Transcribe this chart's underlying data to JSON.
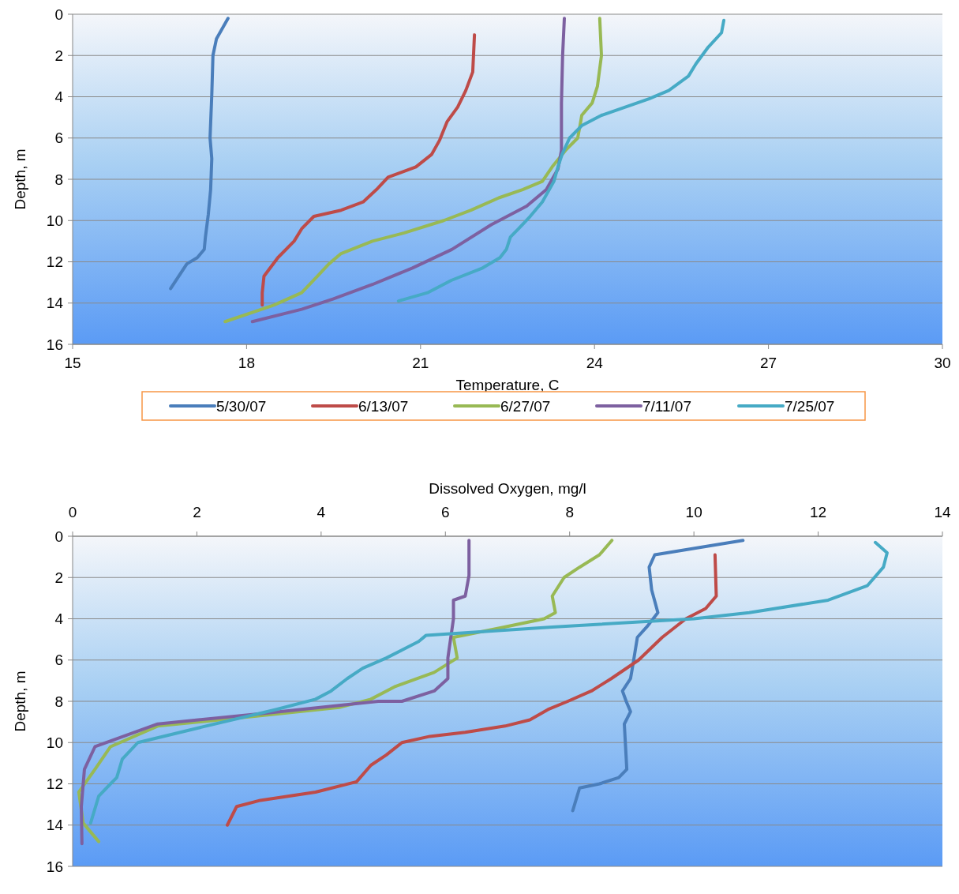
{
  "chart_data": [
    {
      "type": "line",
      "xlabel": "Temperature, C",
      "ylabel": "Depth, m",
      "xlim": [
        15,
        30
      ],
      "xticks": [
        15,
        18,
        21,
        24,
        27,
        30
      ],
      "ylim": [
        16,
        0
      ],
      "yticks": [
        0,
        2,
        4,
        6,
        8,
        10,
        12,
        14,
        16
      ],
      "grid": "y",
      "legend": "bottom",
      "series": [
        {
          "name": "5/30/07",
          "color": "#4a7ebb",
          "x": [
            17.68,
            17.48,
            17.42,
            17.4,
            17.37,
            17.4,
            17.38,
            17.34,
            17.29,
            17.27,
            17.15,
            16.97,
            16.69
          ],
          "values": [
            0.2,
            1.2,
            2,
            3.9,
            6,
            7,
            8.5,
            9.7,
            10.8,
            11.4,
            11.8,
            12.1,
            13.3
          ]
        },
        {
          "name": "6/13/07",
          "color": "#be4b48",
          "x": [
            21.93,
            21.9,
            21.78,
            21.64,
            21.46,
            21.33,
            21.19,
            20.92,
            20.44,
            20.24,
            20.01,
            19.63,
            19.16,
            18.95,
            18.82,
            18.54,
            18.3,
            18.27,
            18.27
          ],
          "values": [
            1,
            2.8,
            3.7,
            4.5,
            5.2,
            6.1,
            6.8,
            7.4,
            7.9,
            8.5,
            9.1,
            9.5,
            9.8,
            10.4,
            11,
            11.8,
            12.7,
            13.5,
            14.1
          ]
        },
        {
          "name": "6/27/07",
          "color": "#98b954",
          "x": [
            24.09,
            24.12,
            24.05,
            23.96,
            23.78,
            23.75,
            23.71,
            23.5,
            23.27,
            23.1,
            22.76,
            22.35,
            21.87,
            21.4,
            20.72,
            20.17,
            19.63,
            19.42,
            19.22,
            18.95,
            18.47,
            17.63
          ],
          "values": [
            0.2,
            2,
            3.5,
            4.3,
            4.9,
            5.4,
            6,
            6.6,
            7.4,
            8.1,
            8.5,
            8.9,
            9.5,
            10,
            10.6,
            11,
            11.6,
            12.1,
            12.7,
            13.5,
            14.1,
            14.9
          ]
        },
        {
          "name": "7/11/07",
          "color": "#7d60a0",
          "x": [
            23.48,
            23.45,
            23.43,
            23.43,
            23.37,
            23.17,
            22.83,
            22.22,
            21.54,
            20.86,
            20.17,
            19.49,
            18.95,
            18.1
          ],
          "values": [
            0.2,
            2,
            4.3,
            6.6,
            7.5,
            8.5,
            9.3,
            10.2,
            11.4,
            12.3,
            13.1,
            13.8,
            14.3,
            14.9
          ]
        },
        {
          "name": "7/25/07",
          "color": "#46aac5",
          "x": [
            26.23,
            26.19,
            25.96,
            25.75,
            25.62,
            25.28,
            24.94,
            24.53,
            24.12,
            23.78,
            23.57,
            23.44,
            23.37,
            23.3,
            23.1,
            22.89,
            22.69,
            22.55,
            22.48,
            22.37,
            22.07,
            21.53,
            21.12,
            20.62
          ],
          "values": [
            0.3,
            0.9,
            1.6,
            2.4,
            3,
            3.7,
            4.1,
            4.5,
            4.9,
            5.4,
            6,
            6.8,
            7.4,
            8.1,
            9.1,
            9.8,
            10.4,
            10.8,
            11.4,
            11.8,
            12.3,
            12.9,
            13.5,
            13.9
          ]
        }
      ]
    },
    {
      "type": "line",
      "xlabel": "Dissolved Oxygen, mg/l",
      "ylabel": "Depth, m",
      "xlim": [
        0,
        14
      ],
      "xticks": [
        0,
        2,
        4,
        6,
        8,
        10,
        12,
        14
      ],
      "ylim": [
        16,
        0
      ],
      "yticks": [
        0,
        2,
        4,
        6,
        8,
        10,
        12,
        14,
        16
      ],
      "grid": "y",
      "series": [
        {
          "color": "#4a7ebb",
          "x": [
            10.79,
            9.37,
            9.28,
            9.32,
            9.42,
            9.24,
            9.09,
            9.02,
            8.98,
            8.85,
            8.91,
            8.98,
            8.88,
            8.9,
            8.92,
            8.79,
            8.48,
            8.16,
            8.05
          ],
          "values": [
            0.2,
            0.9,
            1.5,
            2.6,
            3.7,
            4.4,
            4.9,
            6.2,
            6.9,
            7.5,
            8,
            8.5,
            9.1,
            10.2,
            11.3,
            11.7,
            12,
            12.2,
            13.3
          ]
        },
        {
          "color": "#be4b48",
          "x": [
            10.34,
            10.36,
            10.19,
            9.87,
            9.49,
            9.11,
            8.67,
            8.35,
            7.97,
            7.65,
            7.36,
            6.96,
            6.32,
            5.75,
            5.3,
            5.05,
            4.8,
            4.57,
            3.91,
            3.02,
            2.64,
            2.49
          ],
          "values": [
            0.9,
            2.9,
            3.5,
            4,
            4.9,
            6,
            6.9,
            7.5,
            8,
            8.4,
            8.9,
            9.2,
            9.5,
            9.7,
            10,
            10.6,
            11.1,
            11.9,
            12.4,
            12.8,
            13.1,
            14
          ]
        },
        {
          "color": "#98b954",
          "x": [
            8.68,
            8.48,
            8.16,
            7.91,
            7.72,
            7.77,
            7.59,
            6.95,
            6.13,
            6.19,
            5.82,
            5.18,
            4.8,
            4.29,
            3.02,
            1.37,
            0.61,
            0.36,
            0.1,
            0.17,
            0.42
          ],
          "values": [
            0.2,
            0.9,
            1.5,
            2,
            2.9,
            3.7,
            4,
            4.4,
            4.9,
            5.9,
            6.6,
            7.3,
            7.9,
            8.3,
            8.7,
            9.2,
            10.2,
            11.3,
            12.4,
            13.9,
            14.8
          ]
        },
        {
          "color": "#7d60a0",
          "x": [
            6.38,
            6.38,
            6.32,
            6.13,
            6.13,
            6.04,
            6.04,
            5.82,
            5.3,
            4.92,
            3.02,
            1.37,
            0.36,
            0.19,
            0.14,
            0.15
          ],
          "values": [
            0.2,
            1.9,
            2.9,
            3.1,
            4,
            5.9,
            6.9,
            7.5,
            8,
            8,
            8.6,
            9.1,
            10.2,
            11.3,
            13.1,
            14.9
          ]
        },
        {
          "color": "#46aac5",
          "x": [
            12.92,
            13.11,
            13.05,
            12.79,
            12.16,
            10.89,
            10,
            7.72,
            5.69,
            5.57,
            5.05,
            4.67,
            4.42,
            4.16,
            3.91,
            3.27,
            2.01,
            1.05,
            0.8,
            0.71,
            0.61,
            0.42,
            0.29
          ],
          "values": [
            0.3,
            0.8,
            1.5,
            2.4,
            3.1,
            3.7,
            4,
            4.4,
            4.8,
            5.1,
            5.9,
            6.4,
            6.9,
            7.5,
            7.9,
            8.4,
            9.3,
            10,
            10.8,
            11.7,
            12,
            12.6,
            13.9
          ]
        }
      ]
    }
  ]
}
